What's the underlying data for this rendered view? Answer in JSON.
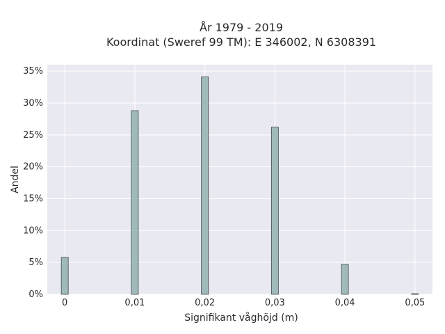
{
  "chart_data": {
    "type": "bar",
    "title_line1": "År 1979 - 2019",
    "title_line2": "Koordinat (Sweref 99 TM): E 346002, N 6308391",
    "xlabel": "Signifikant våghöjd (m)",
    "ylabel": "Andel",
    "x": [
      0,
      0.01,
      0.02,
      0.03,
      0.04,
      0.05
    ],
    "x_tick_labels": [
      "0",
      "0,01",
      "0,02",
      "0,03",
      "0,04",
      "0,05"
    ],
    "values": [
      5.8,
      28.8,
      34.1,
      26.2,
      4.7,
      0.1
    ],
    "y_ticks": [
      0,
      5,
      10,
      15,
      20,
      25,
      30,
      35
    ],
    "y_tick_labels": [
      "0%",
      "5%",
      "10%",
      "15%",
      "20%",
      "25%",
      "30%",
      "35%"
    ],
    "xlim": [
      -0.0025,
      0.0525
    ],
    "ylim": [
      0,
      36
    ],
    "grid": true,
    "colors": {
      "plot_background": "#e9e9f1",
      "bar_fill": "#a0b9ba",
      "bar_stroke": "#3e4a4a",
      "grid": "#ffffff"
    }
  }
}
